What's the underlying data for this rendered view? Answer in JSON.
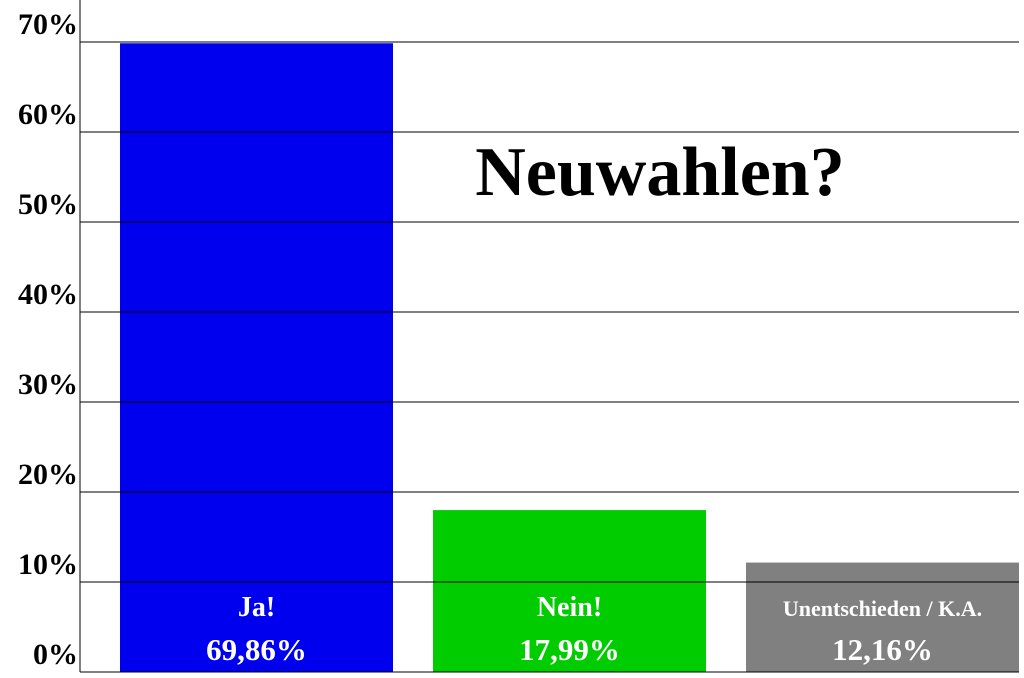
{
  "chart_data": {
    "type": "bar",
    "title": "Neuwahlen?",
    "categories": [
      "Ja!",
      "Nein!",
      "Unentschieden / K.A."
    ],
    "values": [
      69.86,
      17.99,
      12.16
    ],
    "value_labels": [
      "69,86%",
      "17,99%",
      "12,16%"
    ],
    "colors": [
      "#0000ee",
      "#00cc00",
      "#808080"
    ],
    "ylim": [
      0,
      70
    ],
    "yticks": [
      {
        "value": 0,
        "label": "0%"
      },
      {
        "value": 10,
        "label": "10%"
      },
      {
        "value": 20,
        "label": "20%"
      },
      {
        "value": 30,
        "label": "30%"
      },
      {
        "value": 40,
        "label": "40%"
      },
      {
        "value": 50,
        "label": "50%"
      },
      {
        "value": 60,
        "label": "60%"
      },
      {
        "value": 70,
        "label": "70%"
      }
    ],
    "grid": true
  }
}
